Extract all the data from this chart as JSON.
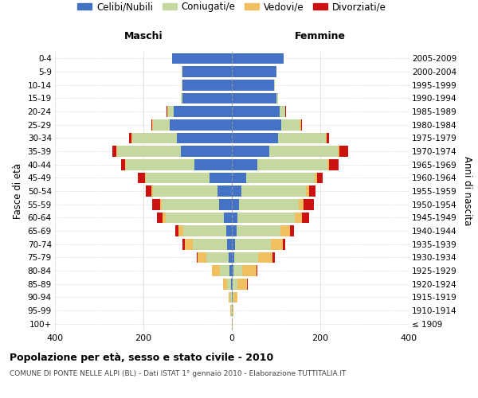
{
  "age_groups": [
    "100+",
    "95-99",
    "90-94",
    "85-89",
    "80-84",
    "75-79",
    "70-74",
    "65-69",
    "60-64",
    "55-59",
    "50-54",
    "45-49",
    "40-44",
    "35-39",
    "30-34",
    "25-29",
    "20-24",
    "15-19",
    "10-14",
    "5-9",
    "0-4"
  ],
  "birth_years": [
    "≤ 1909",
    "1910-1914",
    "1915-1919",
    "1920-1924",
    "1925-1929",
    "1930-1934",
    "1935-1939",
    "1940-1944",
    "1945-1949",
    "1950-1954",
    "1955-1959",
    "1960-1964",
    "1965-1969",
    "1970-1974",
    "1975-1979",
    "1980-1984",
    "1985-1989",
    "1990-1994",
    "1995-1999",
    "2000-2004",
    "2005-2009"
  ],
  "colors": {
    "celibi": "#4472c4",
    "coniugati": "#c5d8a0",
    "vedovi": "#f0c060",
    "divorziati": "#cc1111"
  },
  "maschi": {
    "celibi": [
      0,
      0,
      0,
      2,
      5,
      7,
      10,
      12,
      18,
      28,
      33,
      50,
      85,
      115,
      125,
      140,
      132,
      112,
      112,
      112,
      135
    ],
    "coniugati": [
      0,
      1,
      3,
      8,
      22,
      50,
      78,
      98,
      132,
      130,
      145,
      145,
      155,
      145,
      100,
      38,
      12,
      4,
      2,
      1,
      0
    ],
    "vedovi": [
      0,
      2,
      4,
      10,
      18,
      20,
      18,
      10,
      6,
      4,
      4,
      2,
      2,
      2,
      2,
      2,
      2,
      0,
      0,
      0,
      0
    ],
    "divorziati": [
      0,
      0,
      0,
      0,
      0,
      2,
      6,
      8,
      14,
      18,
      12,
      15,
      8,
      8,
      5,
      2,
      1,
      0,
      0,
      0,
      0
    ]
  },
  "femmine": {
    "celibi": [
      0,
      0,
      1,
      2,
      4,
      5,
      8,
      10,
      12,
      16,
      22,
      32,
      58,
      85,
      105,
      112,
      108,
      100,
      96,
      100,
      118
    ],
    "coniugati": [
      0,
      1,
      3,
      10,
      20,
      55,
      80,
      100,
      130,
      135,
      145,
      155,
      158,
      155,
      108,
      42,
      12,
      4,
      2,
      1,
      0
    ],
    "vedovi": [
      1,
      3,
      8,
      22,
      32,
      32,
      28,
      22,
      16,
      12,
      8,
      5,
      3,
      3,
      2,
      2,
      1,
      0,
      0,
      0,
      0
    ],
    "divorziati": [
      0,
      0,
      0,
      2,
      2,
      5,
      5,
      8,
      16,
      22,
      14,
      14,
      22,
      20,
      5,
      2,
      1,
      0,
      0,
      0,
      0
    ]
  },
  "xlim": 400,
  "title": "Popolazione per età, sesso e stato civile - 2010",
  "subtitle": "COMUNE DI PONTE NELLE ALPI (BL) - Dati ISTAT 1° gennaio 2010 - Elaborazione TUTTITALIA.IT",
  "ylabel_left": "Fasce di età",
  "ylabel_right": "Anni di nascita",
  "xlabel_left": "Maschi",
  "xlabel_right": "Femmine",
  "legend_labels": [
    "Celibi/Nubili",
    "Coniugati/e",
    "Vedovi/e",
    "Divorziati/e"
  ],
  "background_color": "#ffffff",
  "grid_color": "#cccccc"
}
